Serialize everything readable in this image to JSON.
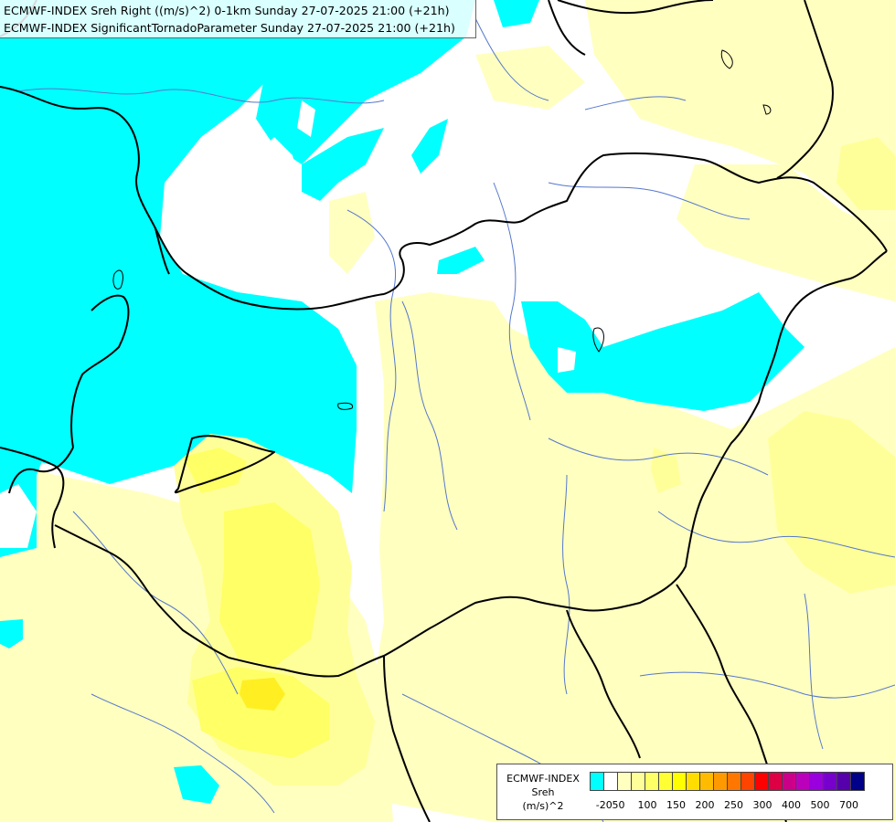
{
  "title_lines": [
    "ECMWF-INDEX Sreh Right ((m/s)^2) 0-1km Sunday 27-07-2025 21:00 (+21h)",
    "ECMWF-INDEX SignificantTornadoParameter Sunday 27-07-2025 21:00 (+21h)"
  ],
  "legend": {
    "source": "ECMWF-INDEX",
    "variable": "Sreh",
    "unit": "(m/s)^2",
    "colors": [
      "#00ffff",
      "#ffffff",
      "#ffffc0",
      "#ffff99",
      "#ffff66",
      "#ffff33",
      "#ffff00",
      "#ffdd00",
      "#ffbb00",
      "#ff9900",
      "#ff7700",
      "#ff4400",
      "#ff0000",
      "#dd0044",
      "#cc0088",
      "#bb00bb",
      "#9900dd",
      "#7700cc",
      "#5500aa",
      "#000088"
    ],
    "ticks": [
      {
        "value": "-20",
        "index": 1
      },
      {
        "value": "50",
        "index": 2
      },
      {
        "value": "100",
        "index": 4
      },
      {
        "value": "150",
        "index": 6
      },
      {
        "value": "200",
        "index": 8
      },
      {
        "value": "250",
        "index": 10
      },
      {
        "value": "300",
        "index": 12
      },
      {
        "value": "400",
        "index": 14
      },
      {
        "value": "500",
        "index": 16
      },
      {
        "value": "700",
        "index": 18
      }
    ]
  },
  "map_colors": {
    "cyan": "#00ffff",
    "pale_yellow": "#ffffc0",
    "light_yellow": "#ffff99",
    "yellow": "#ffff66",
    "strong_yellow": "#ffee22",
    "border": "#000000",
    "river": "#5577cc"
  }
}
